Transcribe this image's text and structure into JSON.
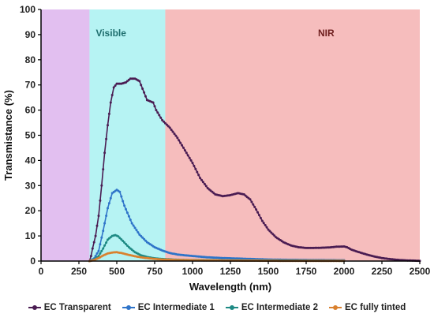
{
  "chart_data": {
    "type": "line",
    "xlabel": "Wavelength (nm)",
    "ylabel": "Transmistance (%)",
    "xlim": [
      0,
      2500
    ],
    "ylim": [
      0,
      100
    ],
    "x_ticks": [
      0,
      250,
      500,
      750,
      1000,
      1250,
      1500,
      1750,
      2000,
      2250,
      2500
    ],
    "y_ticks": [
      0,
      10,
      20,
      30,
      40,
      50,
      60,
      70,
      80,
      90,
      100
    ],
    "grid": false,
    "legend_position": "bottom",
    "regions": [
      {
        "label": "",
        "x_range": [
          0,
          320
        ],
        "color": "#e2bff0"
      },
      {
        "label": "Visible",
        "x_range": [
          320,
          820
        ],
        "color": "#b6f3f3",
        "label_color": "#1e6e6e"
      },
      {
        "label": "NIR",
        "x_range": [
          820,
          2500
        ],
        "color": "#f6bdbd",
        "label_color": "#6e1e1e"
      }
    ],
    "series": [
      {
        "name": "EC Transparent",
        "color": "#4a1c52",
        "points": [
          [
            320,
            0
          ],
          [
            330,
            2
          ],
          [
            340,
            5
          ],
          [
            360,
            10
          ],
          [
            380,
            18
          ],
          [
            400,
            30
          ],
          [
            420,
            43
          ],
          [
            440,
            54
          ],
          [
            460,
            63
          ],
          [
            480,
            69
          ],
          [
            500,
            70.5
          ],
          [
            530,
            70.5
          ],
          [
            560,
            71
          ],
          [
            590,
            72.5
          ],
          [
            620,
            72.5
          ],
          [
            650,
            71.5
          ],
          [
            680,
            67
          ],
          [
            700,
            64
          ],
          [
            720,
            63.5
          ],
          [
            740,
            63
          ],
          [
            760,
            60
          ],
          [
            800,
            56
          ],
          [
            850,
            53
          ],
          [
            900,
            49
          ],
          [
            950,
            44
          ],
          [
            1000,
            39
          ],
          [
            1050,
            33
          ],
          [
            1100,
            29
          ],
          [
            1150,
            26.5
          ],
          [
            1200,
            25.8
          ],
          [
            1250,
            26.2
          ],
          [
            1300,
            27
          ],
          [
            1340,
            26.5
          ],
          [
            1380,
            24.5
          ],
          [
            1420,
            20.5
          ],
          [
            1460,
            16
          ],
          [
            1500,
            12.5
          ],
          [
            1550,
            9.5
          ],
          [
            1600,
            7.5
          ],
          [
            1650,
            6.2
          ],
          [
            1700,
            5.5
          ],
          [
            1750,
            5.2
          ],
          [
            1800,
            5.2
          ],
          [
            1850,
            5.3
          ],
          [
            1900,
            5.4
          ],
          [
            1950,
            5.7
          ],
          [
            2000,
            5.8
          ],
          [
            2020,
            5.5
          ],
          [
            2050,
            4.5
          ],
          [
            2100,
            3.5
          ],
          [
            2150,
            2.6
          ],
          [
            2200,
            1.8
          ],
          [
            2250,
            1.2
          ],
          [
            2300,
            0.8
          ],
          [
            2350,
            0.5
          ],
          [
            2400,
            0.3
          ],
          [
            2450,
            0.2
          ],
          [
            2500,
            0.1
          ]
        ]
      },
      {
        "name": "EC Intermediate 1",
        "color": "#2f74c9",
        "points": [
          [
            320,
            0
          ],
          [
            350,
            1
          ],
          [
            380,
            4
          ],
          [
            410,
            12
          ],
          [
            440,
            21
          ],
          [
            470,
            27
          ],
          [
            500,
            28.3
          ],
          [
            520,
            27.5
          ],
          [
            550,
            22
          ],
          [
            600,
            15
          ],
          [
            650,
            10.5
          ],
          [
            700,
            7.5
          ],
          [
            750,
            5.5
          ],
          [
            800,
            4.2
          ],
          [
            850,
            3.2
          ],
          [
            900,
            2.6
          ],
          [
            1000,
            2
          ],
          [
            1100,
            1.5
          ],
          [
            1200,
            1.2
          ],
          [
            1300,
            1
          ],
          [
            1400,
            0.8
          ],
          [
            1500,
            0.6
          ],
          [
            1600,
            0.5
          ],
          [
            1800,
            0.4
          ],
          [
            2000,
            0.3
          ]
        ]
      },
      {
        "name": "EC Intermediate 2",
        "color": "#1e8a84",
        "points": [
          [
            320,
            0
          ],
          [
            350,
            0.5
          ],
          [
            380,
            2
          ],
          [
            410,
            5
          ],
          [
            440,
            8.5
          ],
          [
            470,
            10
          ],
          [
            490,
            10.3
          ],
          [
            510,
            9.8
          ],
          [
            540,
            8
          ],
          [
            580,
            5.5
          ],
          [
            620,
            3.5
          ],
          [
            660,
            2.3
          ],
          [
            700,
            1.6
          ],
          [
            750,
            1.1
          ],
          [
            800,
            0.8
          ],
          [
            900,
            0.5
          ],
          [
            1000,
            0.4
          ],
          [
            1200,
            0.3
          ],
          [
            1400,
            0.25
          ],
          [
            1600,
            0.2
          ],
          [
            1800,
            0.15
          ],
          [
            2000,
            0.1
          ]
        ]
      },
      {
        "name": "EC fully tinted",
        "color": "#d9812f",
        "points": [
          [
            320,
            0
          ],
          [
            350,
            0.4
          ],
          [
            380,
            1.2
          ],
          [
            410,
            2.2
          ],
          [
            440,
            3
          ],
          [
            470,
            3.4
          ],
          [
            500,
            3.5
          ],
          [
            530,
            3.2
          ],
          [
            570,
            2.6
          ],
          [
            620,
            1.9
          ],
          [
            680,
            1.3
          ],
          [
            740,
            0.9
          ],
          [
            800,
            0.6
          ],
          [
            900,
            0.4
          ],
          [
            1000,
            0.3
          ],
          [
            1200,
            0.2
          ],
          [
            1400,
            0.15
          ],
          [
            1600,
            0.1
          ],
          [
            1800,
            0.1
          ],
          [
            2000,
            0.1
          ]
        ]
      }
    ]
  }
}
